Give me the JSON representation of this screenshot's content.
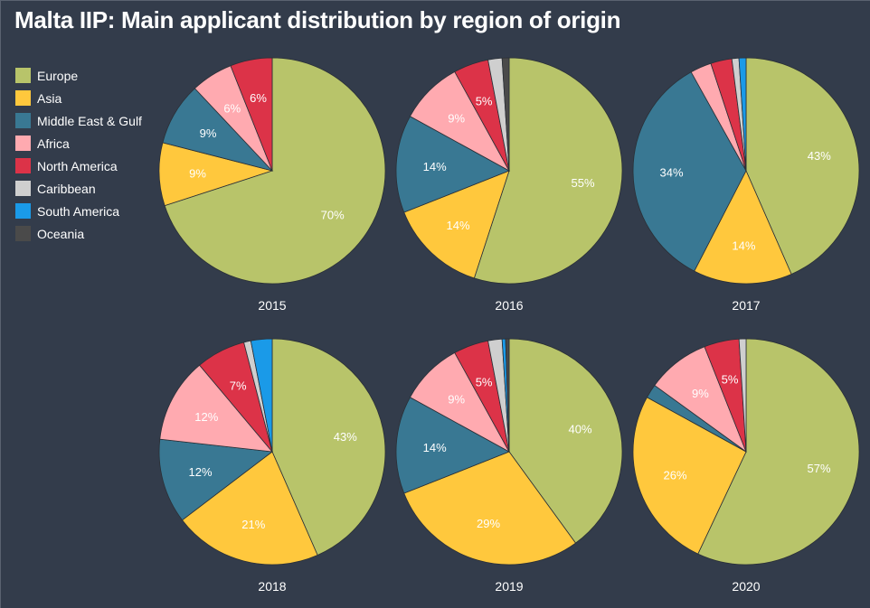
{
  "title": "Malta IIP: Main applicant distribution by region of origin",
  "colors": {
    "background": "#333c4b",
    "Europe": "#b8c46a",
    "Asia": "#ffc83d",
    "Middle East & Gulf": "#397893",
    "Africa": "#ffaab0",
    "North America": "#dc3348",
    "Caribbean": "#cfcfcf",
    "South America": "#1a9ae8",
    "Oceania": "#4a4a4a"
  },
  "chart_data": {
    "type": "pie",
    "legend_position": "top-left",
    "categories": [
      "Europe",
      "Asia",
      "Middle East & Gulf",
      "Africa",
      "North America",
      "Caribbean",
      "South America",
      "Oceania"
    ],
    "pies": [
      {
        "year": "2015",
        "values": [
          70,
          9,
          9,
          6,
          6,
          0,
          0,
          0
        ],
        "labels": [
          "70%",
          "9%",
          "9%",
          "6%",
          "6%",
          "",
          "",
          ""
        ]
      },
      {
        "year": "2016",
        "values": [
          55,
          14,
          14,
          9,
          5,
          2,
          0,
          1
        ],
        "labels": [
          "55%",
          "14%",
          "14%",
          "9%",
          "5%",
          "",
          "",
          ""
        ]
      },
      {
        "year": "2017",
        "values": [
          43,
          14,
          34,
          3,
          3,
          1,
          1,
          0
        ],
        "labels": [
          "43%",
          "14%",
          "34%",
          "",
          "",
          "",
          "",
          ""
        ]
      },
      {
        "year": "2018",
        "values": [
          43,
          21,
          12,
          12,
          7,
          1,
          3,
          0
        ],
        "labels": [
          "43%",
          "21%",
          "12%",
          "12%",
          "7%",
          "",
          "",
          ""
        ]
      },
      {
        "year": "2019",
        "values": [
          40,
          29,
          14,
          9,
          5,
          2,
          0.5,
          0.5
        ],
        "labels": [
          "40%",
          "29%",
          "14%",
          "9%",
          "5%",
          "",
          "",
          ""
        ]
      },
      {
        "year": "2020",
        "values": [
          57,
          26,
          2,
          9,
          5,
          1,
          0,
          0
        ],
        "labels": [
          "57%",
          "26%",
          "",
          "9%",
          "5%",
          "",
          "",
          ""
        ]
      }
    ]
  }
}
